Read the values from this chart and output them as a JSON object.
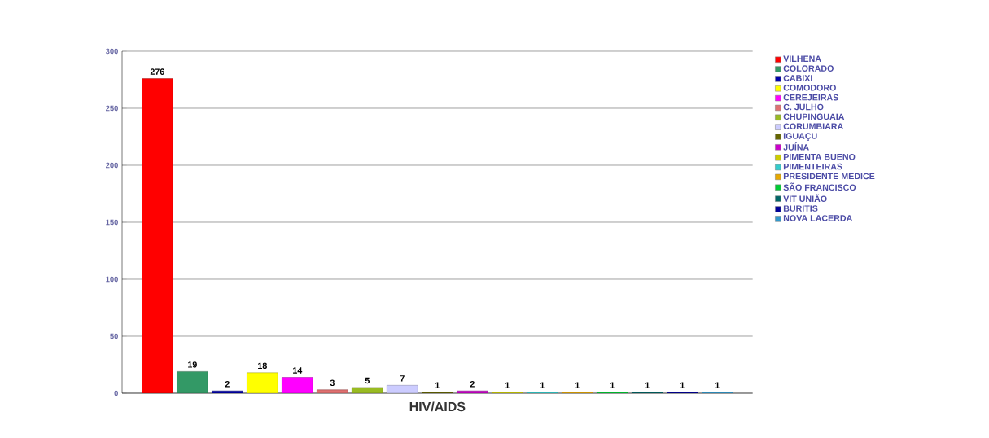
{
  "chart_data": {
    "type": "bar",
    "categories": [
      "HIV/AIDS"
    ],
    "series": [
      {
        "name": "VILHENA",
        "color": "#ff0000",
        "values": [
          276
        ]
      },
      {
        "name": "COLORADO",
        "color": "#339966",
        "values": [
          19
        ]
      },
      {
        "name": "CABIXI",
        "color": "#0000aa",
        "values": [
          2
        ]
      },
      {
        "name": "COMODORO",
        "color": "#ffff00",
        "values": [
          18
        ]
      },
      {
        "name": "CEREJEIRAS",
        "color": "#ff00ff",
        "values": [
          14
        ]
      },
      {
        "name": "C. JULHO",
        "color": "#e07070",
        "values": [
          3
        ]
      },
      {
        "name": "CHUPINGUAIA",
        "color": "#99bb22",
        "values": [
          5
        ]
      },
      {
        "name": "CORUMBIARA",
        "color": "#ccccff",
        "values": [
          7
        ]
      },
      {
        "name": "IGUAÇU",
        "color": "#666600",
        "values": [
          1
        ]
      },
      {
        "name": "JUÍNA",
        "color": "#cc00cc",
        "values": [
          2
        ]
      },
      {
        "name": "PIMENTA BUENO",
        "color": "#cccc00",
        "values": [
          1
        ]
      },
      {
        "name": "PIMENTEIRAS",
        "color": "#33cccc",
        "values": [
          1
        ]
      },
      {
        "name": "PRESIDENTE MEDICE",
        "color": "#e6a800",
        "values": [
          1
        ]
      },
      {
        "name": "SÃO FRANCISCO",
        "color": "#00cc33",
        "values": [
          1
        ]
      },
      {
        "name": "VIT UNIÃO",
        "color": "#006666",
        "values": [
          1
        ]
      },
      {
        "name": "BURITIS",
        "color": "#000099",
        "values": [
          1
        ]
      },
      {
        "name": "NOVA LACERDA",
        "color": "#3399cc",
        "values": [
          1
        ]
      }
    ],
    "ylim": [
      0,
      300
    ],
    "yticks": [
      0,
      50,
      100,
      150,
      200,
      250,
      300
    ],
    "grid": "y",
    "legend": "right",
    "data_labels": true
  }
}
